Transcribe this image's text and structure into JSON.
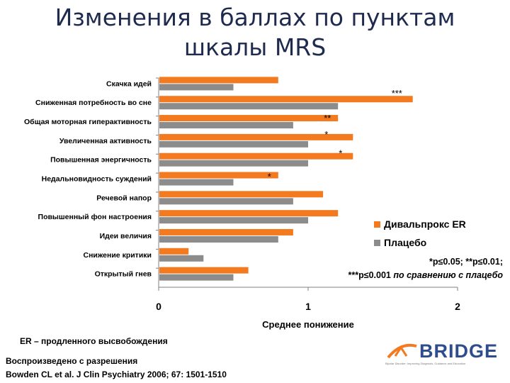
{
  "title": {
    "line1": "Изменения в баллах по пунктам",
    "line2": "шкалы MRS"
  },
  "chart_data": {
    "type": "bar",
    "orientation": "horizontal",
    "title": "Изменения в баллах по пунктам шкалы MRS",
    "xlabel": "Среднее понижение",
    "ylabel": "",
    "xlim": [
      0,
      2
    ],
    "xticks": [
      "0",
      "1",
      "2"
    ],
    "categories": [
      "Скачка идей",
      "Сниженная потребность во сне",
      "Общая моторная гиперактивность",
      "Увеличенная активность",
      "Повышенная энергичность",
      "Недальновидность суждений",
      "Речевой напор",
      "Повышенный фон настроения",
      "Идеи величия",
      "Снижение критики",
      "Открытый гнев"
    ],
    "series": [
      {
        "name": "Дивальпрокс ER",
        "color": "#f47a20",
        "values": [
          0.8,
          1.7,
          1.2,
          1.3,
          1.3,
          0.8,
          1.1,
          1.2,
          0.9,
          0.2,
          0.6
        ]
      },
      {
        "name": "Плацебо",
        "color": "#8c8c8c",
        "values": [
          0.5,
          1.2,
          0.9,
          1.0,
          1.0,
          0.5,
          0.9,
          1.0,
          0.8,
          0.3,
          0.5
        ]
      }
    ],
    "annotations": [
      "***",
      "**",
      "*",
      "*",
      "*"
    ],
    "legend_position": "right"
  },
  "note": {
    "line1": "*p≤0.05; **p≤0.01;",
    "line2a": "***p≤0.001 ",
    "line2b": "по сравнению с плацебо"
  },
  "footer": {
    "abbrev": "ER – продленного высвобождения",
    "permission": "Воспроизведено с разрешения",
    "citation": "Bowden CL et al. J Clin Psychiatry 2006; 67: 1501-1510"
  },
  "logo": {
    "name": "BRIDGE",
    "subtitle": "Bipolar Disorder: Improving Diagnosis, Guidance and Education"
  }
}
